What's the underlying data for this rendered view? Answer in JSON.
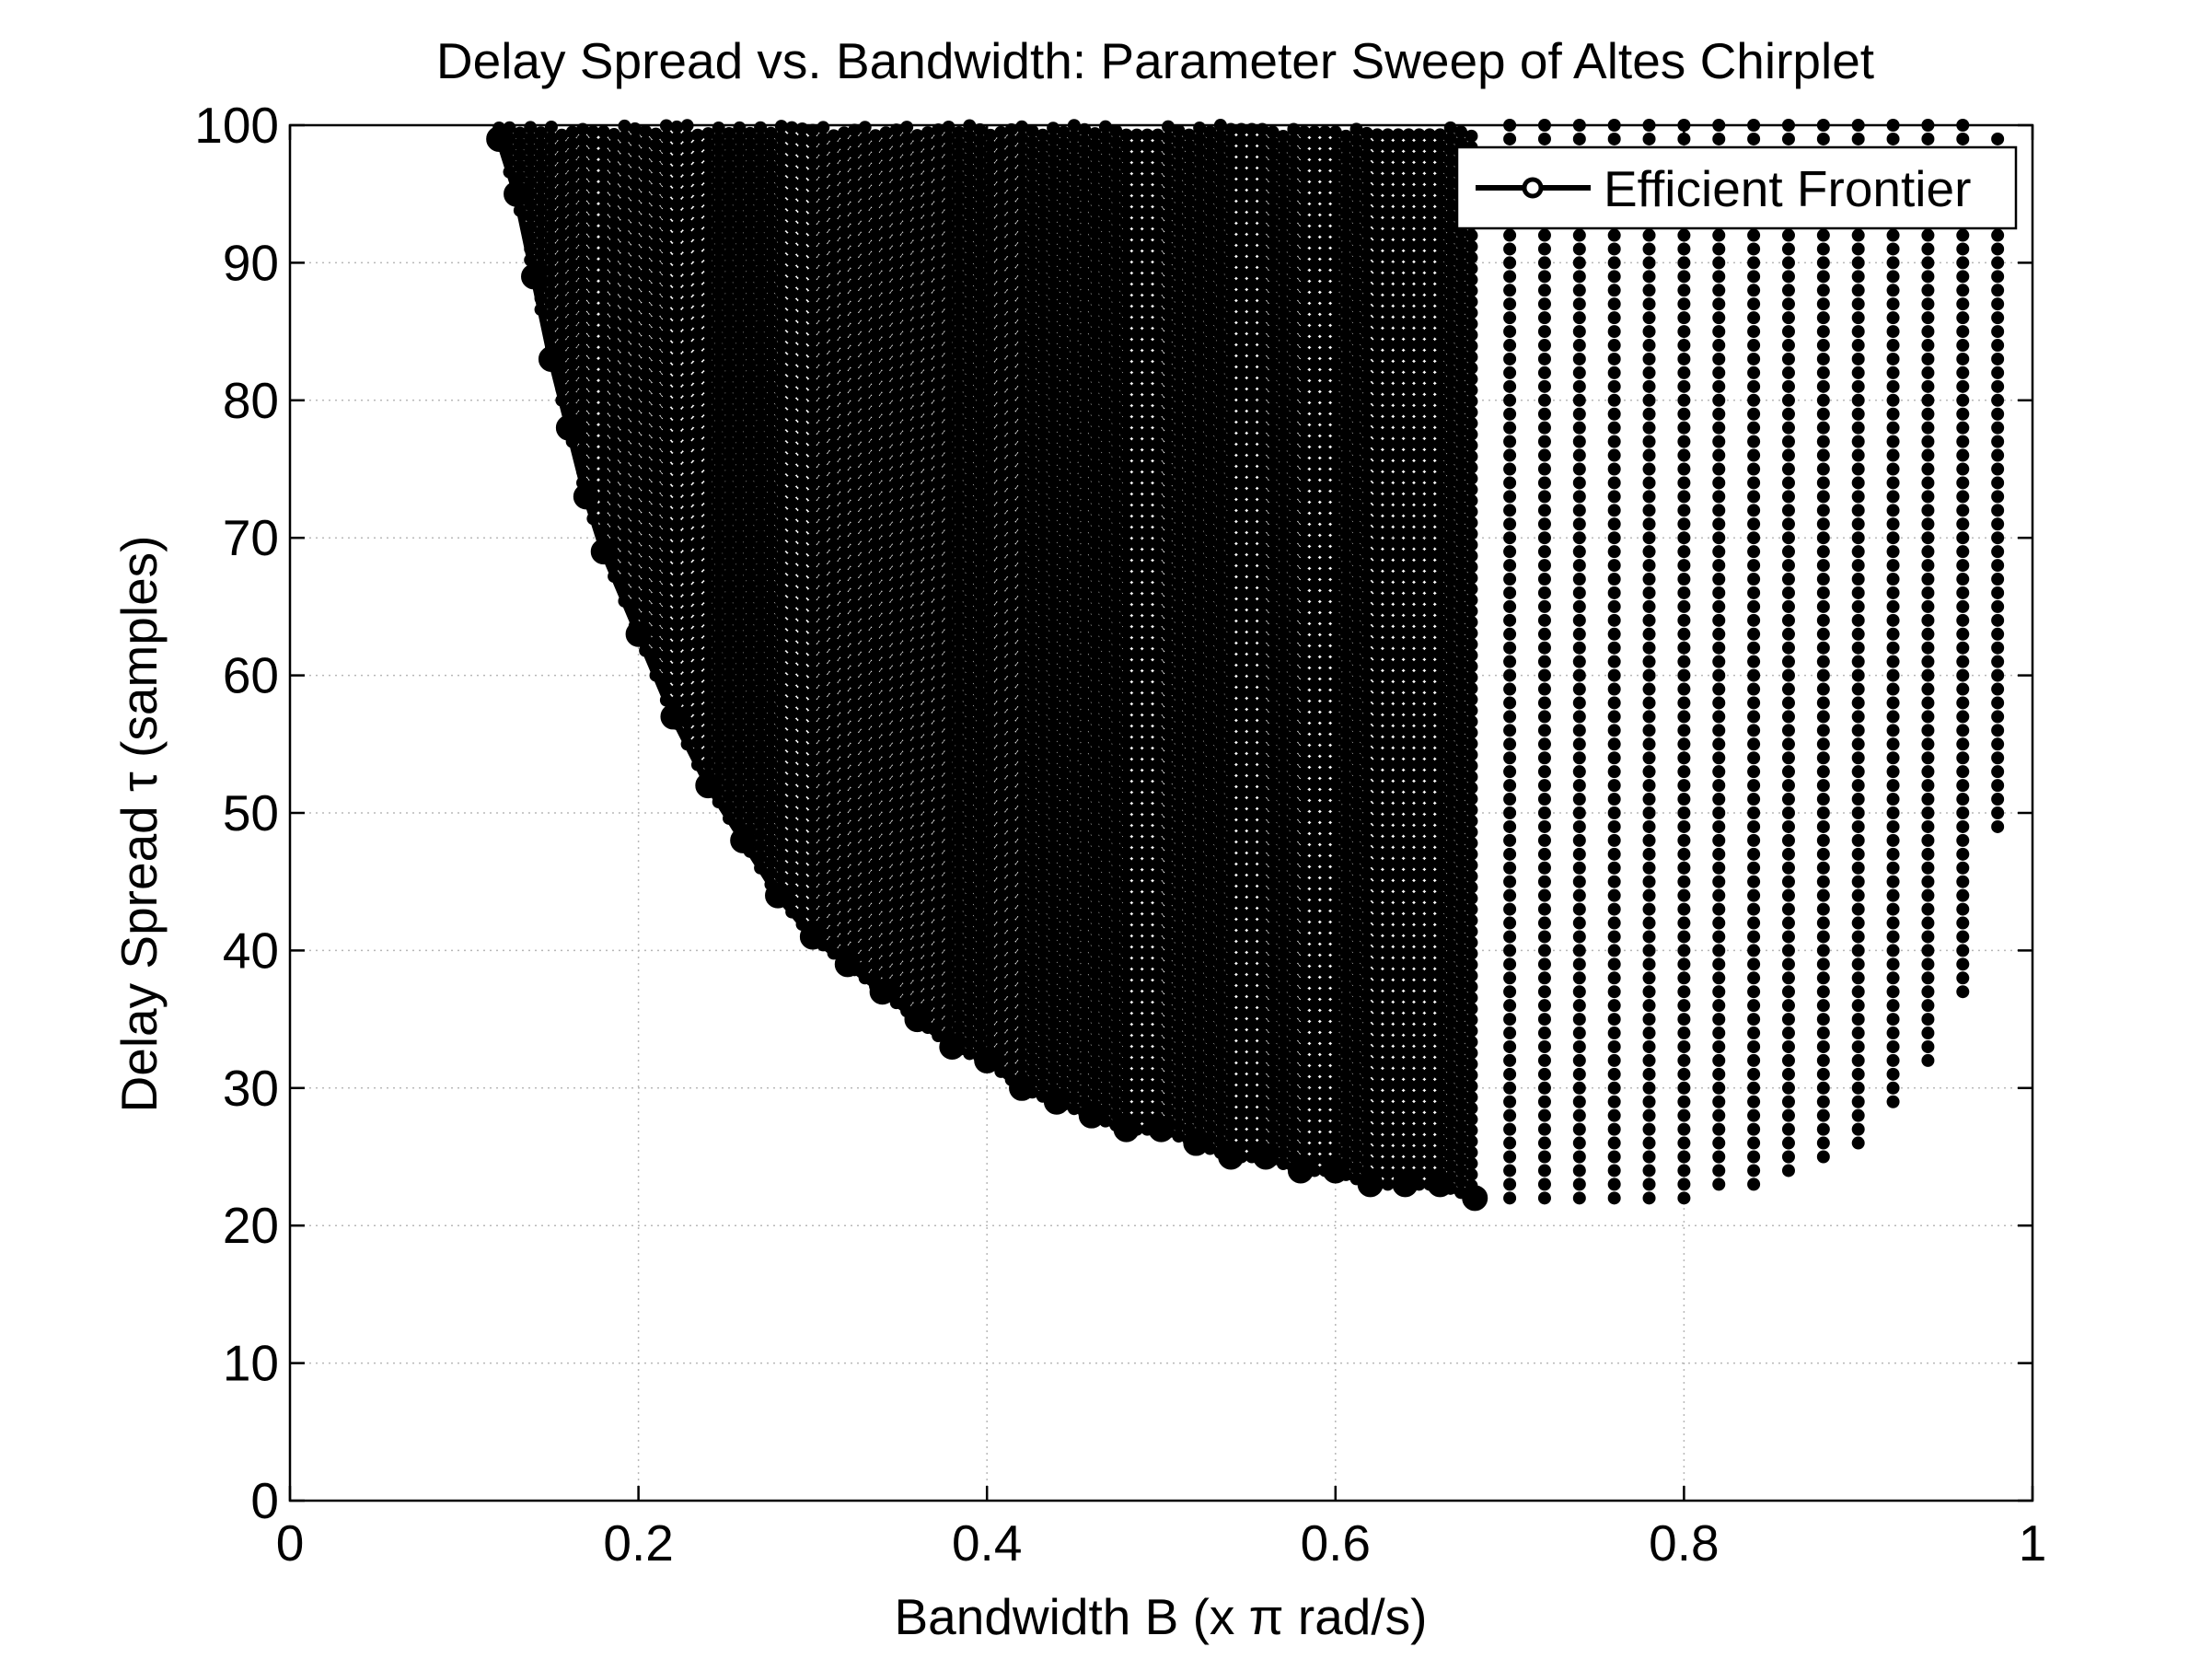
{
  "chart_data": {
    "type": "scatter",
    "title": "Delay Spread vs. Bandwidth: Parameter Sweep of Altes Chirplet",
    "xlabel": "Bandwidth B (x π rad/s)",
    "ylabel": "Delay Spread τ (samples)",
    "xlim": [
      0,
      1
    ],
    "ylim": [
      0,
      100
    ],
    "xticks": [
      0,
      0.2,
      0.4,
      0.6,
      0.8,
      1
    ],
    "xtick_labels": [
      "0",
      "0.2",
      "0.4",
      "0.6",
      "0.8",
      "1"
    ],
    "yticks": [
      0,
      10,
      20,
      30,
      40,
      50,
      60,
      70,
      80,
      90,
      100
    ],
    "ytick_labels": [
      "0",
      "10",
      "20",
      "30",
      "40",
      "50",
      "60",
      "70",
      "80",
      "90",
      "100"
    ],
    "grid": true,
    "legend_position": "top-right",
    "series": [
      {
        "style": "filled dots",
        "color": "#000000",
        "columns": [
          {
            "x": 0.7,
            "y_min": 22,
            "y_max": 100
          },
          {
            "x": 0.72,
            "y_min": 22,
            "y_max": 100
          },
          {
            "x": 0.74,
            "y_min": 22,
            "y_max": 100
          },
          {
            "x": 0.76,
            "y_min": 22,
            "y_max": 100
          },
          {
            "x": 0.78,
            "y_min": 22,
            "y_max": 100
          },
          {
            "x": 0.8,
            "y_min": 22,
            "y_max": 100
          },
          {
            "x": 0.82,
            "y_min": 23,
            "y_max": 100
          },
          {
            "x": 0.84,
            "y_min": 23,
            "y_max": 100
          },
          {
            "x": 0.86,
            "y_min": 24,
            "y_max": 100
          },
          {
            "x": 0.88,
            "y_min": 25,
            "y_max": 100
          },
          {
            "x": 0.9,
            "y_min": 26,
            "y_max": 100
          },
          {
            "x": 0.92,
            "y_min": 29,
            "y_max": 100
          },
          {
            "x": 0.94,
            "y_min": 32,
            "y_max": 100
          },
          {
            "x": 0.96,
            "y_min": 37,
            "y_max": 100
          },
          {
            "x": 0.98,
            "y_min": 49,
            "y_max": 99
          }
        ]
      },
      {
        "name": "Efficient Frontier",
        "style": "line with circle markers",
        "color": "#000000",
        "x": [
          0.12,
          0.13,
          0.14,
          0.15,
          0.16,
          0.17,
          0.18,
          0.2,
          0.22,
          0.24,
          0.26,
          0.28,
          0.3,
          0.32,
          0.34,
          0.36,
          0.38,
          0.4,
          0.42,
          0.44,
          0.46,
          0.48,
          0.5,
          0.52,
          0.54,
          0.56,
          0.58,
          0.6,
          0.62,
          0.64,
          0.66,
          0.68
        ],
        "y": [
          99,
          95,
          89,
          83,
          78,
          73,
          69,
          63,
          57,
          52,
          48,
          44,
          41,
          39,
          37,
          35,
          33,
          32,
          30,
          29,
          28,
          27,
          27,
          26,
          25,
          25,
          24,
          24,
          23,
          23,
          23,
          22
        ]
      }
    ]
  }
}
